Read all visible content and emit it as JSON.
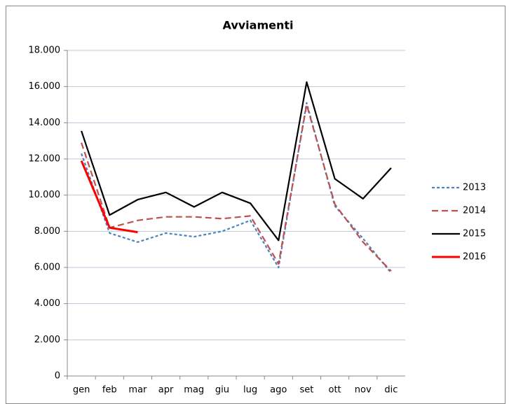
{
  "chart_data": {
    "type": "line",
    "title": "Avviamenti",
    "categories": [
      "gen",
      "feb",
      "mar",
      "apr",
      "mag",
      "giu",
      "lug",
      "ago",
      "set",
      "ott",
      "nov",
      "dic"
    ],
    "series": [
      {
        "name": "2013",
        "color": "#4f81bd",
        "dash": "4,3",
        "values": [
          12300,
          7900,
          7400,
          7900,
          7700,
          8000,
          8600,
          6000,
          15100,
          9400,
          7600,
          5700
        ]
      },
      {
        "name": "2014",
        "color": "#c0504d",
        "dash": "9,5",
        "values": [
          12900,
          8200,
          8600,
          8800,
          8800,
          8700,
          8850,
          6200,
          15000,
          9500,
          7400,
          5800
        ]
      },
      {
        "name": "2015",
        "color": "#000000",
        "dash": "none",
        "values": [
          13550,
          8900,
          9750,
          10150,
          9350,
          10150,
          9550,
          7500,
          16250,
          10900,
          9800,
          11500
        ]
      },
      {
        "name": "2016",
        "color": "#ff0000",
        "dash": "none",
        "width": 3,
        "values": [
          11900,
          8200,
          7950,
          null,
          null,
          null,
          null,
          null,
          null,
          null,
          null,
          null
        ]
      }
    ],
    "ylim": [
      0,
      18000
    ],
    "yticks": [
      0,
      {
        "value": 2000,
        "label": "2.000"
      },
      {
        "value": 4000,
        "label": "4.000"
      },
      {
        "value": 6000,
        "label": "6.000"
      },
      {
        "value": 8000,
        "label": "8.000"
      },
      {
        "value": 10000,
        "label": "10.000"
      },
      {
        "value": 12000,
        "label": "12.000"
      },
      {
        "value": 14000,
        "label": "14.000"
      },
      {
        "value": 16000,
        "label": "16.000"
      },
      {
        "value": 18000,
        "label": "18.000"
      }
    ],
    "grid": true,
    "legend": "right"
  }
}
